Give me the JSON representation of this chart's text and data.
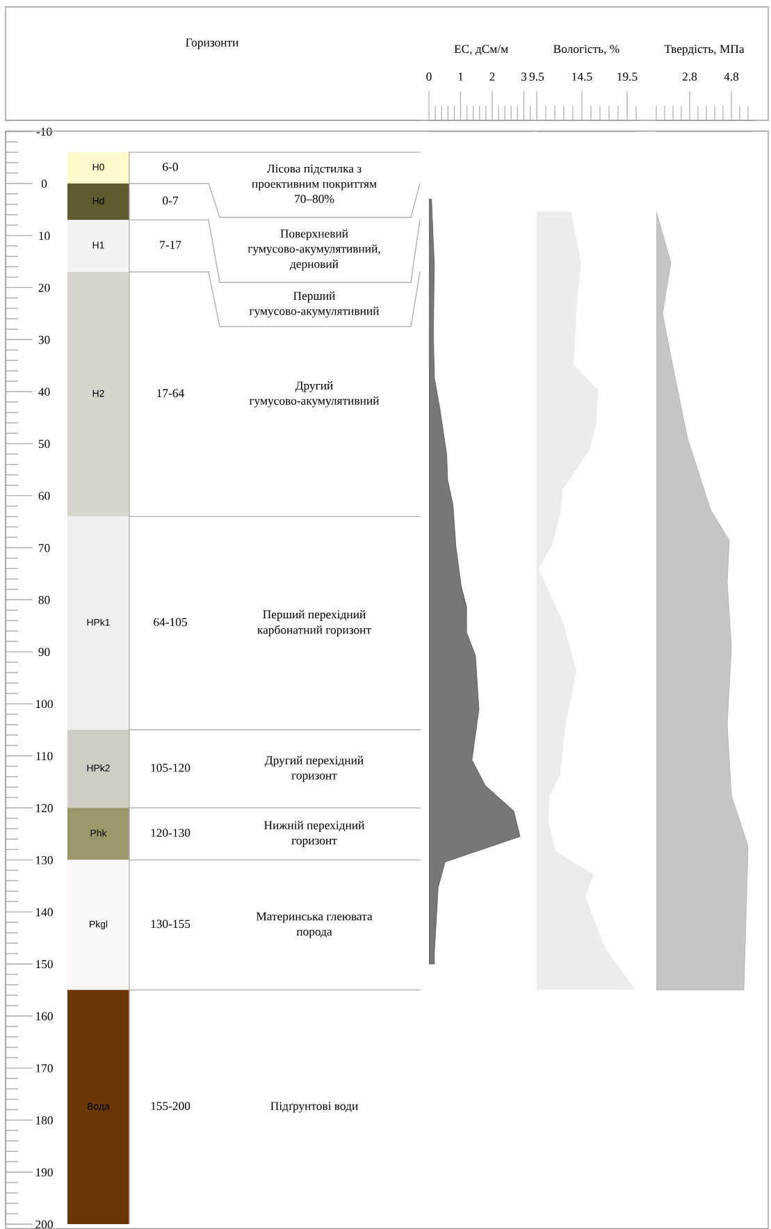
{
  "chart_data": [
    {
      "type": "bar",
      "xlabel": "Горизонти",
      "categories": [
        null
      ],
      "stacked": true,
      "ylim": [
        200,
        -10
      ],
      "yticks": [
        -10,
        0,
        10,
        20,
        30,
        40,
        50,
        60,
        70,
        80,
        90,
        100,
        110,
        120,
        130,
        140,
        150,
        160,
        170,
        180,
        190,
        200
      ],
      "series": [
        {
          "name": "H0",
          "color": "#fdfbc9",
          "values": [
            -6
          ]
        },
        {
          "name": "Hd",
          "color": "#5c5a2e",
          "values": [
            7
          ]
        },
        {
          "name": "H1",
          "color": "#f3f3f3",
          "values": [
            10
          ]
        },
        {
          "name": "H2",
          "color": "#d8d5cd",
          "values": [
            47
          ]
        },
        {
          "name": "HPk1",
          "color": "#efefef",
          "values": [
            41
          ]
        },
        {
          "name": "HPk2",
          "color": "#cfccc3",
          "values": [
            15
          ]
        },
        {
          "name": "Phk",
          "color": "#9a976a",
          "values": [
            10
          ]
        },
        {
          "name": "Pkgl",
          "color": "#faf8f8",
          "values": [
            25
          ]
        },
        {
          "name": "Вода",
          "color": "#6b3608",
          "values": [
            45
          ]
        }
      ],
      "annotations": [
        "6-0",
        "0-7",
        "7-17",
        "17-64",
        "64-105",
        "105-120",
        "120-130",
        "130-155",
        "155-200",
        "Лісова підстилка з\nпроективним покриттям\n70–80%",
        "Поверхневий\nгумусово-акумулятивний,\nдерновий",
        "Перший\nгумусово-акумулятивний",
        "Другий\nгумусово-акумулятивний",
        "Перший перехідний\nкарбонатний горизонт",
        "Другий перехідний\nгоризонт",
        "Нижній перехідний\nгоризонт",
        "Материнська глеювата\nпорода",
        "Підґрунтові води"
      ]
    },
    {
      "type": "area",
      "orientation": "horizontal",
      "xlabel": "EC, дСм/м",
      "color": "#777777",
      "xlim": [
        0,
        3.3
      ],
      "xticks": [
        0,
        1,
        2,
        3
      ],
      "ylim": [
        200,
        -10
      ],
      "tick_labels": "x",
      "x": [
        3,
        15.7,
        28.4,
        37.3,
        43.1,
        52,
        56.9,
        61.8,
        69.6,
        77.4,
        81.4,
        86.3,
        90.7,
        101,
        110.8,
        115.7,
        120.6,
        125.5,
        130.4,
        135.3,
        148,
        150
      ],
      "values": [
        0.08,
        0.17,
        0.14,
        0.17,
        0.34,
        0.56,
        0.59,
        0.76,
        0.85,
        1.02,
        1.19,
        1.19,
        1.47,
        1.58,
        1.36,
        1.78,
        2.68,
        2.88,
        0.51,
        0.29,
        0.17,
        0.17
      ]
    },
    {
      "type": "area",
      "orientation": "horizontal",
      "xlabel": "Вологість, %",
      "color": "#f4f4f4",
      "xlim": [
        9.5,
        20.5
      ],
      "xticks": [
        9.5,
        14.5,
        19.5
      ],
      "ylim": [
        200,
        -10
      ],
      "tick_labels": "x",
      "x": [
        5.4,
        15.2,
        24.5,
        34.8,
        39.7,
        46.1,
        51,
        58.8,
        63.7,
        69.6,
        74,
        84.3,
        93.6,
        103.9,
        113.7,
        117.6,
        122.5,
        128.4,
        132.8,
        137.2,
        147,
        155
      ],
      "values": [
        13.3,
        14.4,
        13.9,
        13.6,
        16.3,
        16.1,
        15.4,
        12.4,
        12.1,
        11.2,
        9.7,
        12.4,
        13.9,
        12.7,
        12.1,
        10.9,
        10.8,
        11.6,
        15.8,
        14.9,
        17.1,
        20.4
      ]
    },
    {
      "type": "area",
      "orientation": "horizontal",
      "xlabel": "Твердість, МПа",
      "color": "#c6c6c6",
      "xlim": [
        1.2,
        5.8
      ],
      "xticks": [
        2.8,
        4.8
      ],
      "ylim": [
        200,
        -10
      ],
      "tick_labels": "x",
      "x": [
        5.4,
        15.2,
        25,
        35.3,
        49,
        62.7,
        68.6,
        76.5,
        89.2,
        103.9,
        117.6,
        127.4,
        155
      ],
      "values": [
        1.2,
        1.9,
        1.5,
        2.0,
        2.7,
        3.8,
        4.7,
        4.6,
        4.8,
        4.6,
        4.8,
        5.6,
        5.4
      ]
    }
  ]
}
